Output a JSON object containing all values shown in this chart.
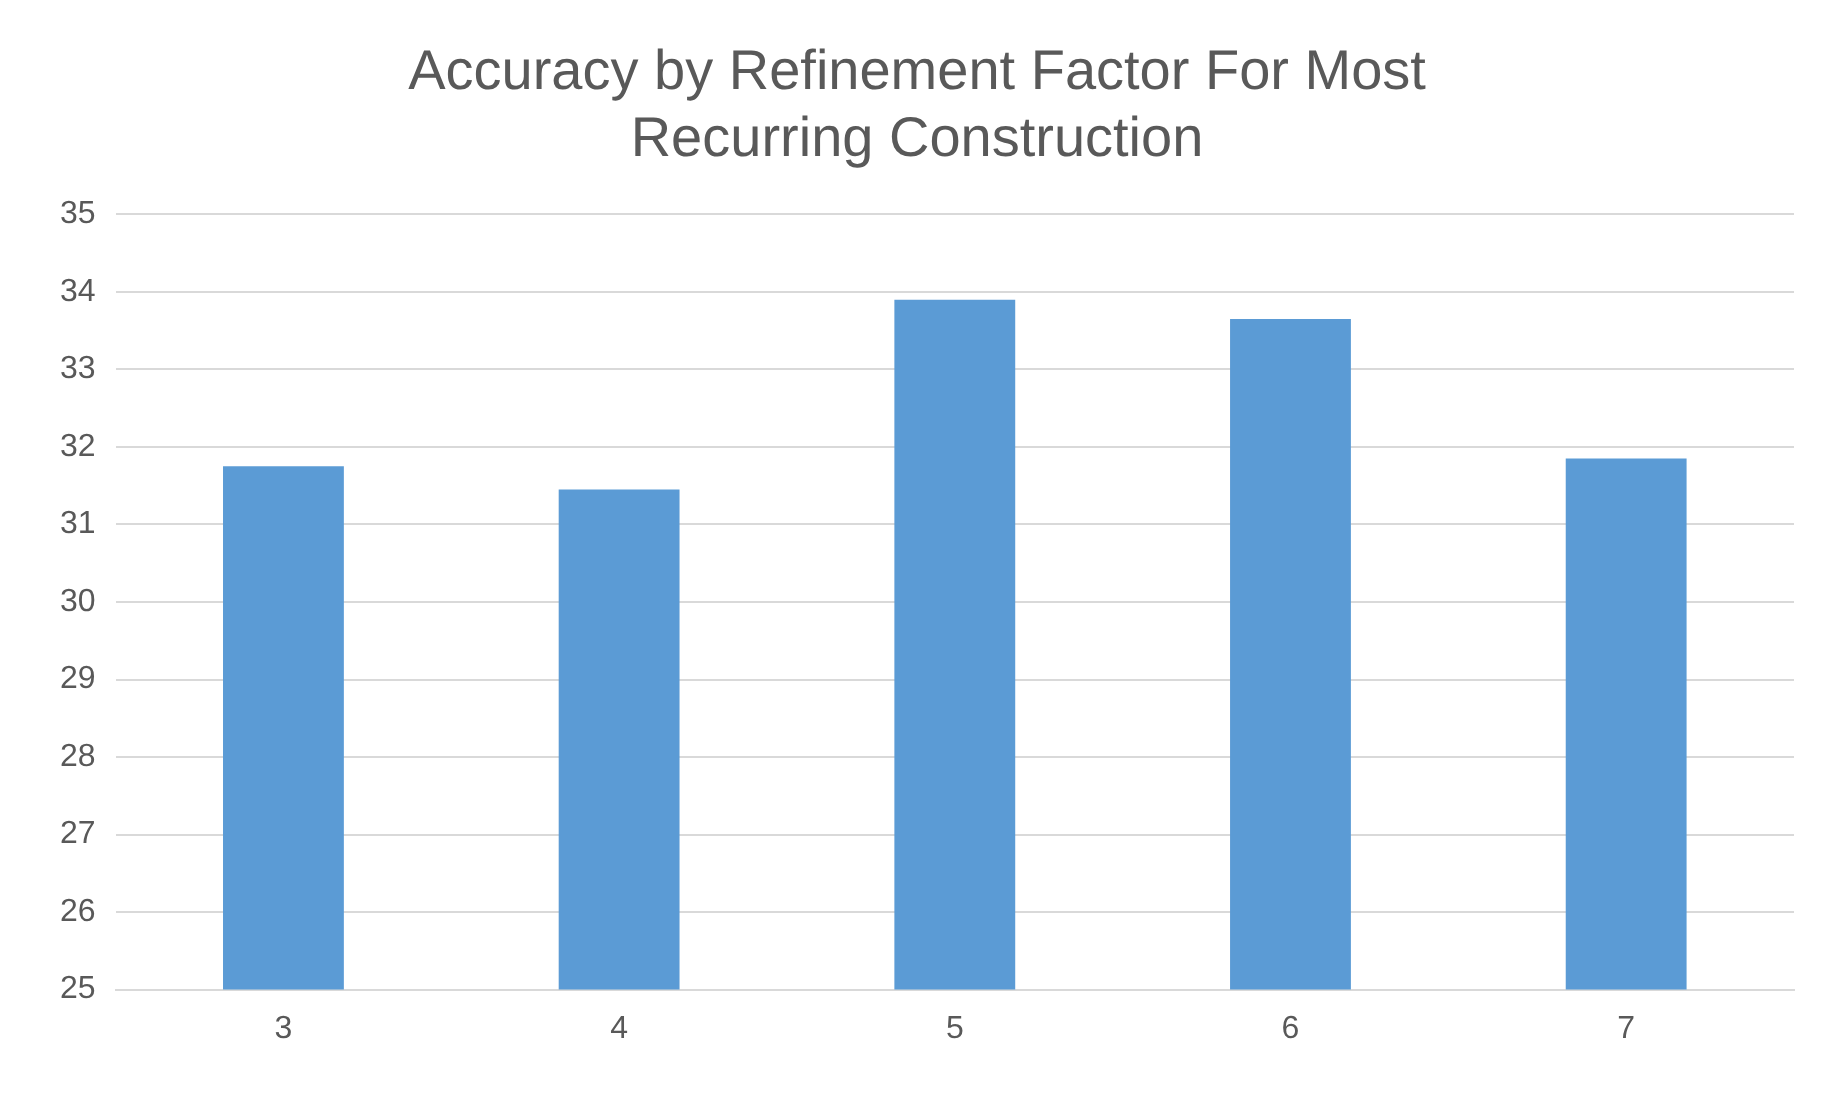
{
  "chart_data": {
    "type": "bar",
    "title": [
      "Accuracy by Refinement Factor For Most",
      "Recurring Construction"
    ],
    "categories": [
      "3",
      "4",
      "5",
      "6",
      "7"
    ],
    "values": [
      31.75,
      31.45,
      33.9,
      33.65,
      31.85
    ],
    "color": "#5b9bd5",
    "ylim": [
      25,
      35
    ],
    "yticks": [
      25,
      26,
      27,
      28,
      29,
      30,
      31,
      32,
      33,
      34,
      35
    ],
    "grid": "y"
  }
}
